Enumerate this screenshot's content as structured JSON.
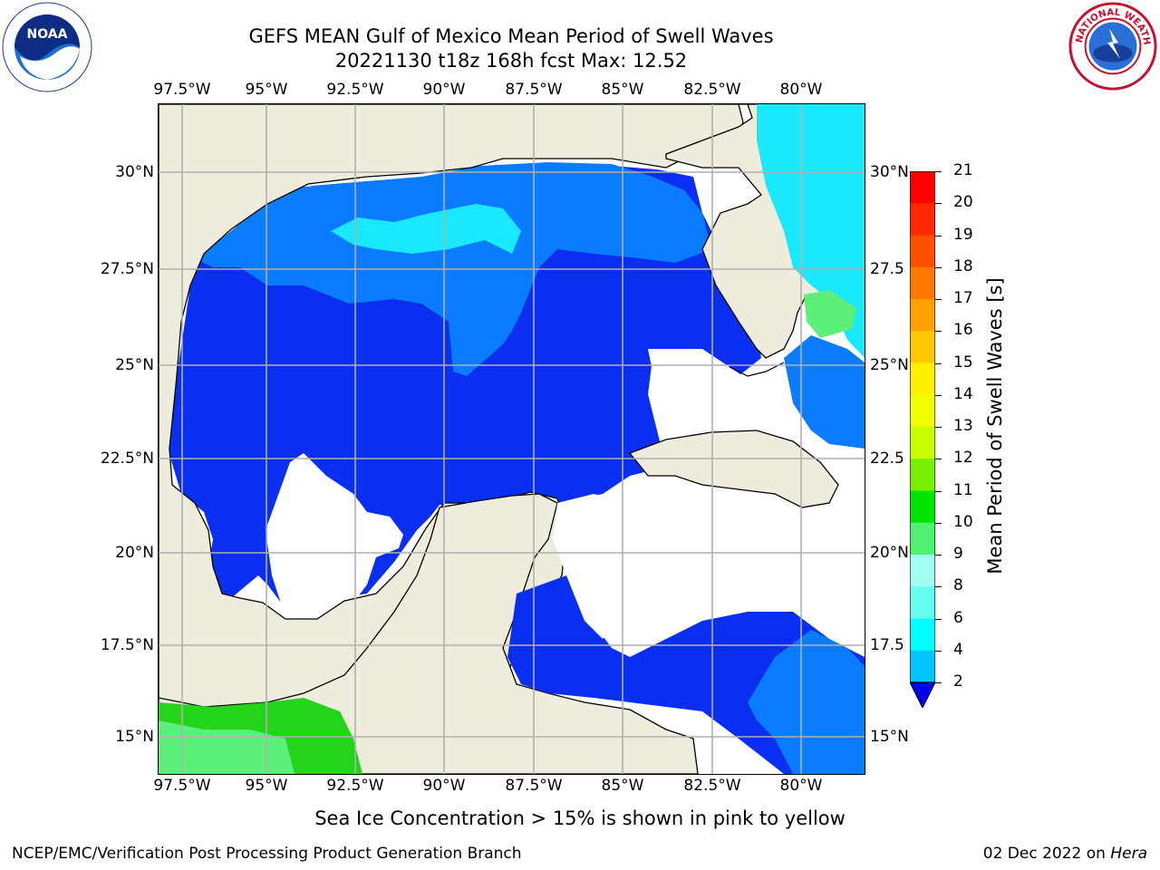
{
  "header": {
    "title_line1": "GEFS MEAN Gulf of Mexico Mean Period of Swell Waves",
    "title_line2": "20221130 t18z 168h fcst   Max: 12.52"
  },
  "axes": {
    "lon_labels": [
      "97.5°W",
      "95°W",
      "92.5°W",
      "90°W",
      "87.5°W",
      "85°W",
      "82.5°W",
      "80°W"
    ],
    "lat_labels_left": [
      "30°N",
      "27.5°N",
      "25°N",
      "22.5°N",
      "20°N",
      "17.5°N",
      "15°N"
    ],
    "lat_labels_right": [
      "30°N",
      "27.5",
      "25°N",
      "22.5",
      "20°N",
      "17.5",
      "15°N"
    ]
  },
  "colorbar": {
    "title": "Mean Period of Swell Waves [s]",
    "ticks": [
      "21",
      "20",
      "19",
      "18",
      "17",
      "16",
      "15",
      "14",
      "13",
      "12",
      "11",
      "10",
      "9",
      "8",
      "6",
      "4",
      "2"
    ],
    "colors": [
      "#ff0000",
      "#ff2800",
      "#ff5000",
      "#ff7800",
      "#ffa000",
      "#ffc800",
      "#fff000",
      "#f0ff00",
      "#c8ff00",
      "#78f000",
      "#00e600",
      "#50f070",
      "#a0fff0",
      "#64fff0",
      "#00ffff",
      "#00c8ff",
      "#0064ff",
      "#0000f0"
    ]
  },
  "logos": {
    "left": "noaa-logo",
    "right": "nws-logo",
    "nws_text": "NATIONAL WEATHER SERVICE",
    "noaa_text": "NOAA"
  },
  "map_colors": {
    "land": "#eeecdc",
    "ocean_2_4": "#0a2ff0",
    "ocean_4_6": "#0a7cff",
    "ocean_6_8": "#19e8ff",
    "ocean_9_10": "#5cf07a",
    "ocean_10_12": "#24d41a"
  },
  "footer": {
    "sea_ice_note": "Sea Ice Concentration > 15% is shown in pink to yellow",
    "credit": "NCEP/EMC/Verification Post Processing Product Generation Branch",
    "date_text": "02 Dec 2022 on",
    "machine": "Hera"
  }
}
